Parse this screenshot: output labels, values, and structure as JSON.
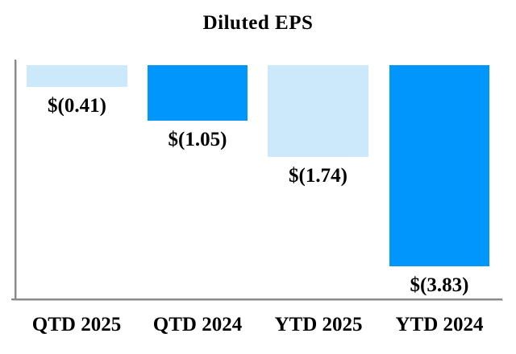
{
  "chart_data": {
    "type": "bar",
    "title": "Diluted EPS",
    "categories": [
      "QTD 2025",
      "QTD 2024",
      "YTD 2025",
      "YTD 2024"
    ],
    "values": [
      -0.41,
      -1.05,
      -1.74,
      -3.83
    ],
    "value_labels": [
      "$(0.41)",
      "$(1.05)",
      "$(1.74)",
      "$(3.83)"
    ],
    "bar_colors": [
      "#CCE9FC",
      "#0096FC",
      "#CCE9FC",
      "#0096FC"
    ],
    "xlabel": "",
    "ylabel": "",
    "ylim": [
      -4.5,
      0
    ],
    "baseline": "zero-at-top, bars extend downward for negative values",
    "grid": false,
    "legend": null,
    "colors": {
      "light_blue": "#CCE9FC",
      "bright_blue": "#0096FC",
      "axis_gray": "#8A8A8A",
      "text": "#000000",
      "background": "#FFFFFF"
    }
  }
}
